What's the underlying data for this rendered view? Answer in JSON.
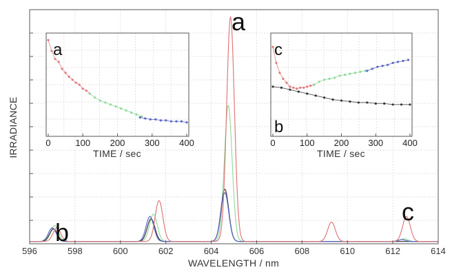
{
  "chart_data": [
    {
      "type": "line",
      "xlabel": "WAVELENGTH / nm",
      "ylabel": "IRRADIANCE",
      "xlim": [
        596,
        614
      ],
      "x_ticks": [
        596,
        598,
        600,
        602,
        604,
        606,
        608,
        610,
        612,
        614
      ],
      "ylim": [
        0,
        1
      ],
      "grid": true,
      "colors": {
        "red": "#e07a7a",
        "green": "#8fd89a",
        "blue": "#5a66c8",
        "black": "#333333"
      },
      "peaks": {
        "red": [
          {
            "x": 597.2,
            "y": 0.06
          },
          {
            "x": 601.7,
            "y": 0.18
          },
          {
            "x": 604.85,
            "y": 0.99
          },
          {
            "x": 609.3,
            "y": 0.085
          },
          {
            "x": 612.6,
            "y": 0.11
          }
        ],
        "green": [
          {
            "x": 597.1,
            "y": 0.07
          },
          {
            "x": 601.45,
            "y": 0.12
          },
          {
            "x": 604.75,
            "y": 0.6
          },
          {
            "x": 612.5,
            "y": 0.012
          }
        ],
        "blue": [
          {
            "x": 597.0,
            "y": 0.06
          },
          {
            "x": 601.3,
            "y": 0.11
          },
          {
            "x": 604.6,
            "y": 0.215
          },
          {
            "x": 612.4,
            "y": 0.008
          }
        ],
        "black": [
          {
            "x": 597.05,
            "y": 0.055
          },
          {
            "x": 601.35,
            "y": 0.1
          },
          {
            "x": 604.6,
            "y": 0.23
          }
        ]
      },
      "annotations": [
        {
          "text": "a",
          "x": 605.0,
          "y": 0.97
        },
        {
          "text": "b",
          "x": 597.8,
          "y": 0.08
        },
        {
          "text": "c",
          "x": 612.6,
          "y": 0.13
        }
      ]
    },
    {
      "type": "scatter",
      "panel": "inset-left",
      "label": "a",
      "xlabel": "TIME / sec",
      "x_ticks": [
        0,
        100,
        200,
        300,
        400
      ],
      "xlim": [
        0,
        400
      ],
      "ylim": [
        0,
        1
      ],
      "grid": true,
      "series": [
        {
          "color": "red",
          "x": [
            0,
            10,
            20,
            30,
            40,
            50,
            60,
            70,
            80,
            90,
            100,
            110,
            120
          ],
          "y": [
            0.95,
            0.84,
            0.76,
            0.73,
            0.66,
            0.62,
            0.58,
            0.55,
            0.52,
            0.5,
            0.46,
            0.44,
            0.41
          ]
        },
        {
          "color": "green",
          "x": [
            120,
            135,
            150,
            165,
            180,
            195,
            210,
            225,
            240,
            255,
            270
          ],
          "y": [
            0.41,
            0.37,
            0.34,
            0.32,
            0.3,
            0.28,
            0.26,
            0.24,
            0.22,
            0.2,
            0.18
          ]
        },
        {
          "color": "blue",
          "x": [
            265,
            280,
            295,
            310,
            325,
            340,
            355,
            370,
            385,
            400
          ],
          "y": [
            0.17,
            0.16,
            0.15,
            0.15,
            0.14,
            0.14,
            0.13,
            0.13,
            0.13,
            0.12
          ]
        }
      ]
    },
    {
      "type": "scatter",
      "panel": "inset-right",
      "label": "c",
      "label2": "b",
      "xlabel": "TIME / sec",
      "x_ticks": [
        0,
        100,
        200,
        300,
        400
      ],
      "xlim": [
        0,
        400
      ],
      "ylim": [
        0,
        1
      ],
      "grid": true,
      "series": [
        {
          "color": "red",
          "x": [
            0,
            10,
            20,
            30,
            40,
            50,
            60,
            70,
            80,
            90,
            100,
            110,
            120
          ],
          "y": [
            0.88,
            0.72,
            0.62,
            0.56,
            0.52,
            0.48,
            0.47,
            0.46,
            0.47,
            0.47,
            0.48,
            0.49,
            0.5
          ]
        },
        {
          "color": "green",
          "x": [
            120,
            135,
            150,
            165,
            180,
            195,
            210,
            225,
            240,
            255,
            270
          ],
          "y": [
            0.5,
            0.53,
            0.55,
            0.56,
            0.57,
            0.59,
            0.6,
            0.61,
            0.62,
            0.63,
            0.64
          ]
        },
        {
          "color": "blue",
          "x": [
            275,
            290,
            305,
            320,
            335,
            350,
            365,
            380,
            395
          ],
          "y": [
            0.64,
            0.66,
            0.68,
            0.69,
            0.7,
            0.72,
            0.73,
            0.74,
            0.75
          ]
        },
        {
          "color": "black",
          "x": [
            0,
            25,
            50,
            75,
            100,
            125,
            150,
            175,
            200,
            225,
            250,
            275,
            300,
            325,
            350,
            375,
            400
          ],
          "y": [
            0.48,
            0.47,
            0.45,
            0.43,
            0.41,
            0.39,
            0.37,
            0.35,
            0.34,
            0.33,
            0.32,
            0.32,
            0.31,
            0.31,
            0.3,
            0.3,
            0.3
          ]
        }
      ]
    }
  ]
}
